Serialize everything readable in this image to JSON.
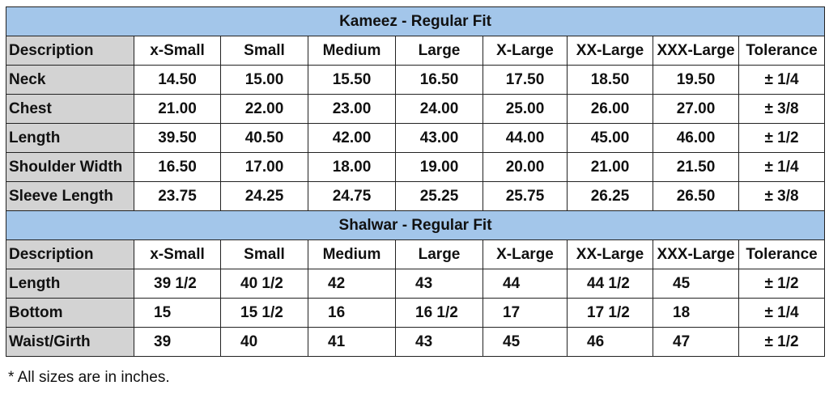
{
  "tables": [
    {
      "title": "Kameez - Regular Fit",
      "align": "center",
      "header": [
        "Description",
        "x-Small",
        "Small",
        "Medium",
        "Large",
        "X-Large",
        "XX-Large",
        "XXX-Large",
        "Tolerance"
      ],
      "rows": [
        [
          "Neck",
          "14.50",
          "15.00",
          "15.50",
          "16.50",
          "17.50",
          "18.50",
          "19.50",
          "± 1/4"
        ],
        [
          "Chest",
          "21.00",
          "22.00",
          "23.00",
          "24.00",
          "25.00",
          "26.00",
          "27.00",
          "± 3/8"
        ],
        [
          "Length",
          "39.50",
          "40.50",
          "42.00",
          "43.00",
          "44.00",
          "45.00",
          "46.00",
          "± 1/2"
        ],
        [
          "Shoulder Width",
          "16.50",
          "17.00",
          "18.00",
          "19.00",
          "20.00",
          "21.00",
          "21.50",
          "± 1/4"
        ],
        [
          "Sleeve Length",
          "23.75",
          "24.25",
          "24.75",
          "25.25",
          "25.75",
          "26.25",
          "26.50",
          "± 3/8"
        ]
      ]
    },
    {
      "title": "Shalwar - Regular Fit",
      "align": "left",
      "header": [
        "Description",
        "x-Small",
        "Small",
        "Medium",
        "Large",
        "X-Large",
        "XX-Large",
        "XXX-Large",
        "Tolerance"
      ],
      "rows": [
        [
          "Length",
          "39 1/2",
          "40 1/2",
          "42",
          "43",
          "44",
          "44 1/2",
          "45",
          "± 1/2"
        ],
        [
          "Bottom",
          "15",
          "15 1/2",
          "16",
          "16 1/2",
          "17",
          "17 1/2",
          "18",
          "± 1/4"
        ],
        [
          "Waist/Girth",
          "39",
          "40",
          "41",
          "43",
          "45",
          "46",
          "47",
          "± 1/2"
        ]
      ]
    }
  ],
  "footnote": "* All sizes are in inches."
}
